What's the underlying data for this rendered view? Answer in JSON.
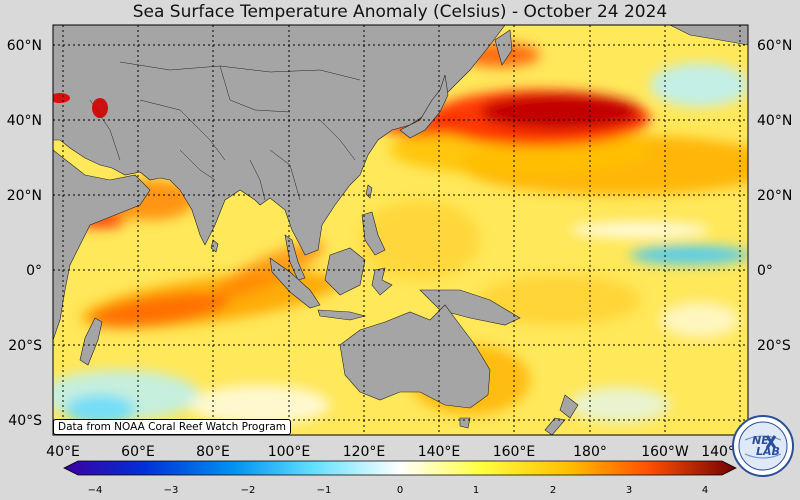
{
  "title": "Sea Surface Temperature Anomaly (Celsius) - October 24 2024",
  "credit": "Data from NOAA Coral Reef Watch Program",
  "logo_text": [
    "NE",
    "LAB"
  ],
  "lat_labels": [
    "60°N",
    "40°N",
    "20°N",
    "0°",
    "20°S",
    "40°S"
  ],
  "lon_labels": [
    "40°E",
    "60°E",
    "80°E",
    "100°E",
    "120°E",
    "140°E",
    "160°E",
    "180°",
    "160°W",
    "140°W"
  ],
  "colorbar": {
    "ticks": [
      "−4",
      "−3",
      "−2",
      "−1",
      "0",
      "1",
      "2",
      "3",
      "4"
    ],
    "colors": [
      "#3c00a0",
      "#0030d8",
      "#0090f0",
      "#60e0ff",
      "#ffffff",
      "#ffff40",
      "#ffc000",
      "#ff5000",
      "#d00000",
      "#700000"
    ]
  },
  "colors": {
    "land": "#a5a5a5",
    "ocean_base": "#ffe85a"
  }
}
